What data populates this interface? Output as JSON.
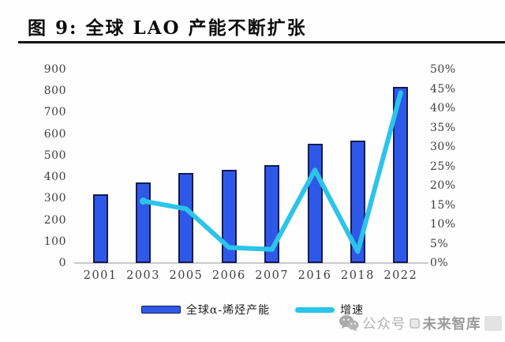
{
  "header": {
    "title": "图 9: 全球 LAO 产能不断扩张"
  },
  "chart_data": {
    "type": "bar",
    "title": "全球 LAO 产能不断扩张",
    "categories": [
      "2001",
      "2003",
      "2005",
      "2006",
      "2007",
      "2016",
      "2018",
      "2022"
    ],
    "series": [
      {
        "name": "全球α-烯烃产能",
        "type": "bar",
        "axis": "left",
        "values": [
          320,
          375,
          420,
          435,
          455,
          555,
          570,
          820
        ],
        "color": "#2e59e8",
        "border_color": "#161a52"
      },
      {
        "name": "增速",
        "type": "line",
        "axis": "right",
        "values": [
          null,
          16,
          14,
          4,
          3.5,
          24,
          3,
          44
        ],
        "color": "#2cc4e9"
      }
    ],
    "left_axis": {
      "min": 0,
      "max": 900,
      "step": 100,
      "tick_labels": [
        "0",
        "100",
        "200",
        "300",
        "400",
        "500",
        "600",
        "700",
        "800",
        "900"
      ]
    },
    "right_axis": {
      "min": 0,
      "max": 50,
      "step": 5,
      "tick_labels": [
        "0%",
        "5%",
        "10%",
        "15%",
        "20%",
        "25%",
        "30%",
        "35%",
        "40%",
        "45%",
        "50%"
      ]
    },
    "grid": false,
    "legend_position": "bottom"
  },
  "watermark": {
    "prefix": "公众号",
    "name": "未来智库"
  }
}
